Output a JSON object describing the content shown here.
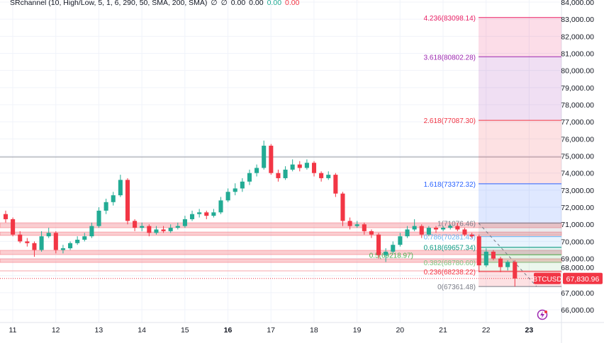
{
  "indicator": {
    "name": "SRchannel (10, High/Low, 5, 1, 6, 290, 50, SMA, 200, SMA)",
    "glyph1": "∅",
    "glyph2": "∅",
    "v1": "0.00",
    "v2": "0.00",
    "v3": "0.00",
    "v4": "0.00"
  },
  "chart_data": {
    "type": "candlestick",
    "symbol": "BTCUSD",
    "last_price_label": "67,830.96",
    "last_price": 67830.96,
    "ylim": [
      65500,
      84100
    ],
    "y_ticks": [
      66000,
      67000,
      68000,
      69000,
      70000,
      71000,
      72000,
      73000,
      74000,
      75000,
      76000,
      77000,
      78000,
      79000,
      80000,
      81000,
      82000,
      83000,
      84000
    ],
    "y_tick_labels": [
      "66,000.00",
      "67,000.00",
      "68,000.00",
      "69,000.00",
      "70,000.00",
      "71,000.00",
      "72,000.00",
      "73,000.00",
      "74,000.00",
      "75,000.00",
      "76,000.00",
      "77,000.00",
      "78,000.00",
      "79,000.00",
      "80,000.00",
      "81,000.00",
      "82,000.00",
      "83,000.00",
      "84,000.00"
    ],
    "x_tick_labels": [
      "11",
      "12",
      "13",
      "14",
      "15",
      "16",
      "17",
      "18",
      "19",
      "20",
      "21",
      "22",
      "23"
    ],
    "bold_x_ticks": [
      "16",
      "23"
    ],
    "grid": true,
    "colors": {
      "up": "#22ab94",
      "down": "#f23645",
      "sr_zone": "#f7a6ab",
      "axis_text": "#131722"
    },
    "candles_per_day": 6,
    "ohlc": [
      [
        71600,
        71800,
        71100,
        71300
      ],
      [
        71300,
        71400,
        70300,
        70400
      ],
      [
        70400,
        70600,
        69900,
        70000
      ],
      [
        70000,
        70200,
        69700,
        69900
      ],
      [
        69900,
        70000,
        69100,
        69500
      ],
      [
        69500,
        70600,
        69400,
        70300
      ],
      [
        70300,
        70800,
        70200,
        70500
      ],
      [
        70500,
        70600,
        69300,
        69500
      ],
      [
        69500,
        69800,
        69300,
        69600
      ],
      [
        69600,
        70000,
        69500,
        69900
      ],
      [
        69900,
        70300,
        69800,
        70100
      ],
      [
        70100,
        70500,
        70000,
        70300
      ],
      [
        70300,
        71100,
        70200,
        70900
      ],
      [
        70900,
        72000,
        70800,
        71800
      ],
      [
        71800,
        72500,
        71600,
        72300
      ],
      [
        72300,
        72900,
        72100,
        72700
      ],
      [
        72700,
        73900,
        72600,
        73600
      ],
      [
        73600,
        73700,
        71000,
        71200
      ],
      [
        71200,
        71300,
        70600,
        70800
      ],
      [
        70800,
        71100,
        70600,
        70900
      ],
      [
        70900,
        71000,
        70300,
        70500
      ],
      [
        70500,
        70900,
        70400,
        70700
      ],
      [
        70700,
        70900,
        70500,
        70600
      ],
      [
        70600,
        71000,
        70500,
        70800
      ],
      [
        70800,
        71100,
        70700,
        70900
      ],
      [
        70900,
        71500,
        70800,
        71300
      ],
      [
        71300,
        71800,
        71200,
        71600
      ],
      [
        71600,
        71900,
        71400,
        71700
      ],
      [
        71700,
        71800,
        71300,
        71500
      ],
      [
        71500,
        71900,
        71400,
        71700
      ],
      [
        71700,
        72600,
        71600,
        72400
      ],
      [
        72400,
        73100,
        72300,
        72900
      ],
      [
        72900,
        73400,
        72700,
        73100
      ],
      [
        73100,
        73700,
        72900,
        73500
      ],
      [
        73500,
        74200,
        73300,
        74000
      ],
      [
        74000,
        74500,
        73800,
        74300
      ],
      [
        74300,
        75900,
        74200,
        75600
      ],
      [
        75600,
        75700,
        73900,
        74000
      ],
      [
        74000,
        74200,
        73500,
        73700
      ],
      [
        73700,
        74400,
        73600,
        74200
      ],
      [
        74200,
        74800,
        74100,
        74500
      ],
      [
        74500,
        74700,
        74100,
        74300
      ],
      [
        74300,
        74800,
        74200,
        74600
      ],
      [
        74600,
        74700,
        73800,
        74000
      ],
      [
        74000,
        74100,
        73500,
        73700
      ],
      [
        73700,
        74100,
        73600,
        73900
      ],
      [
        73900,
        74000,
        72600,
        72800
      ],
      [
        72800,
        72900,
        70900,
        71200
      ],
      [
        71200,
        71400,
        70700,
        70900
      ],
      [
        70900,
        71200,
        70800,
        71000
      ],
      [
        71000,
        71100,
        70400,
        70600
      ],
      [
        70600,
        70700,
        70200,
        70400
      ],
      [
        70400,
        70500,
        69000,
        69200
      ],
      [
        69200,
        69600,
        68800,
        69400
      ],
      [
        69400,
        70000,
        69300,
        69800
      ],
      [
        69800,
        70500,
        69700,
        70300
      ],
      [
        70300,
        70900,
        70200,
        70700
      ],
      [
        70700,
        71300,
        70600,
        70900
      ],
      [
        70900,
        71000,
        70200,
        70400
      ],
      [
        70400,
        70900,
        70300,
        70800
      ],
      [
        70800,
        70900,
        70500,
        70700
      ],
      [
        70700,
        70900,
        70600,
        70800
      ],
      [
        70800,
        71000,
        70700,
        70900
      ],
      [
        70900,
        71076,
        70600,
        70700
      ],
      [
        70700,
        70800,
        70300,
        70400
      ],
      [
        70400,
        70500,
        70200,
        70300
      ],
      [
        70300,
        70400,
        68200,
        68600
      ],
      [
        68600,
        69600,
        68500,
        69400
      ],
      [
        69400,
        69500,
        68900,
        69000
      ],
      [
        69000,
        69100,
        68200,
        68500
      ],
      [
        68500,
        68900,
        68300,
        68800
      ],
      [
        68800,
        68900,
        67361,
        67831
      ]
    ],
    "sr_zones": [
      [
        70800,
        71090
      ],
      [
        70350,
        70550
      ],
      [
        69230,
        69480
      ],
      [
        68770,
        68980
      ]
    ],
    "sr_lines": [
      68280
    ],
    "horizontal_line": 74940,
    "fibonacci": {
      "levels": [
        {
          "ratio": "0",
          "price": 67361.48,
          "label": "0(67361.48)",
          "color": "#787b86",
          "fill": "#f23645"
        },
        {
          "ratio": "0.236",
          "price": 68238.22,
          "label": "0.236(68238.22)",
          "color": "#f23645",
          "fill": "#81c784"
        },
        {
          "ratio": "0.382",
          "price": 68780.6,
          "label": "0.382(68780.60)",
          "color": "#81c784",
          "fill": "#4caf50"
        },
        {
          "ratio": "0.5",
          "price": 69218.97,
          "label": "0.5(69218.97)",
          "color": "#4caf50",
          "fill": "#089981"
        },
        {
          "ratio": "0.618",
          "price": 69657.34,
          "label": "0.618(69657.34)",
          "color": "#089981",
          "fill": "#64b5f6"
        },
        {
          "ratio": "0.786",
          "price": 70281.45,
          "label": "0.786(70281.45)",
          "color": "#64b5f6",
          "fill": "#787b86"
        },
        {
          "ratio": "1",
          "price": 71076.46,
          "label": "1(71076.46)",
          "color": "#787b86",
          "fill": "#2962ff"
        },
        {
          "ratio": "1.618",
          "price": 73372.32,
          "label": "1.618(73372.32)",
          "color": "#2962ff",
          "fill": "#f23645"
        },
        {
          "ratio": "2.618",
          "price": 77087.3,
          "label": "2.618(77087.30)",
          "color": "#f23645",
          "fill": "#9c27b0"
        },
        {
          "ratio": "3.618",
          "price": 80802.28,
          "label": "3.618(80802.28)",
          "color": "#9c27b0",
          "fill": "#e91e63"
        },
        {
          "ratio": "4.236",
          "price": 83098.14,
          "label": "4.236(83098.14)",
          "color": "#e91e63",
          "fill": null
        }
      ]
    }
  },
  "icons": {
    "alert": "lightning-icon"
  }
}
